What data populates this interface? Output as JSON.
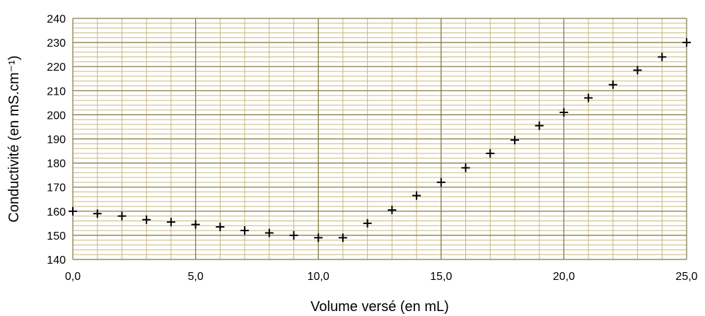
{
  "chart_data": {
    "type": "scatter",
    "title": "",
    "xlabel": "Volume versé (en mL)",
    "ylabel": "Conductivité (en mS.cm⁻¹)",
    "xlim": [
      0,
      25
    ],
    "ylim": [
      140,
      240
    ],
    "x_ticks": [
      "0,0",
      "5,0",
      "10,0",
      "15,0",
      "20,0",
      "25,0"
    ],
    "y_ticks": [
      "140",
      "150",
      "160",
      "170",
      "180",
      "190",
      "200",
      "210",
      "220",
      "230",
      "240"
    ],
    "x_major_step": 5,
    "x_minor_step": 1,
    "y_major_step": 10,
    "y_minor_step": 2,
    "grid": true,
    "marker": "plus",
    "colors": {
      "marker": "#000000",
      "minor_grid": "#c8b77f",
      "major_grid": "#7f7743",
      "plot_bg": "#ffffff"
    },
    "x": [
      0,
      1,
      2,
      3,
      4,
      5,
      6,
      7,
      8,
      9,
      10,
      11,
      12,
      13,
      14,
      15,
      16,
      17,
      18,
      19,
      20,
      21,
      22,
      23,
      24,
      25
    ],
    "y": [
      160,
      159,
      158,
      156.5,
      155.5,
      154.5,
      153.5,
      152,
      151,
      150,
      149,
      149,
      155,
      160.5,
      166.5,
      172,
      178,
      184,
      189.5,
      195.5,
      201,
      207,
      212.5,
      218.5,
      224,
      230
    ]
  }
}
